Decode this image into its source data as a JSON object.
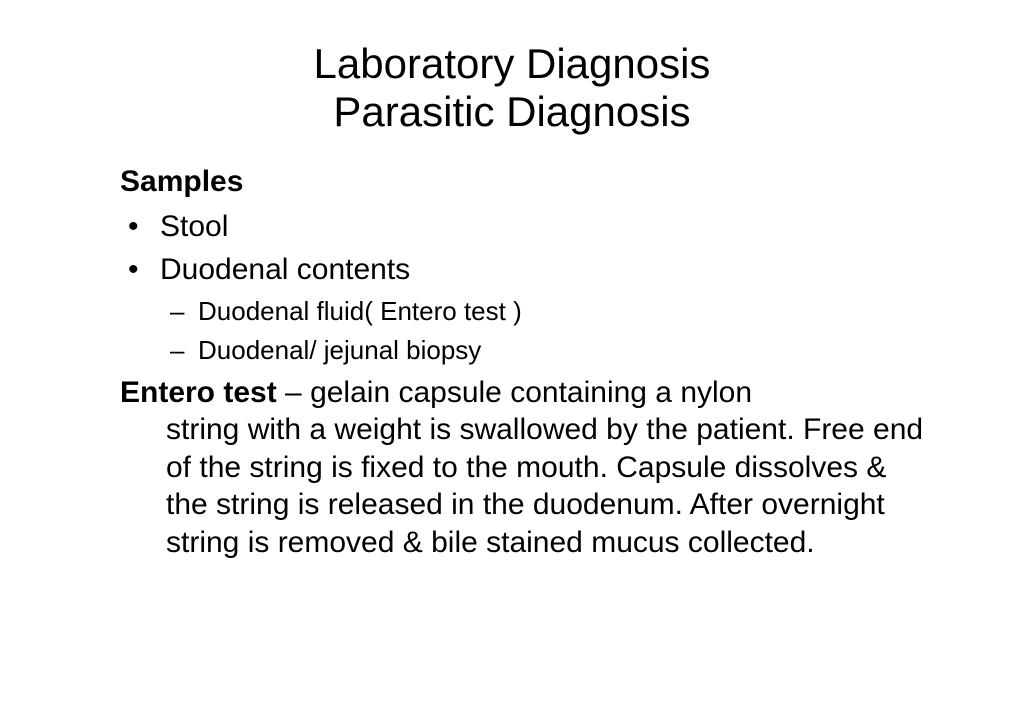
{
  "title": {
    "line1": "Laboratory Diagnosis",
    "line2": "Parasitic Diagnosis"
  },
  "section_heading": "Samples",
  "bullets": [
    {
      "text": "Stool"
    },
    {
      "text": "Duodenal contents",
      "sub": [
        "Duodenal fluid( Entero test )",
        "Duodenal/ jejunal biopsy"
      ]
    }
  ],
  "entero": {
    "label": "Entero test",
    "sep": " – ",
    "first_line_tail": "gelain capsule containing a nylon",
    "rest": "string with a weight is swallowed by the patient. Free end of the string is fixed to the mouth. Capsule dissolves & the string is released in the duodenum. After overnight string is removed & bile stained mucus collected."
  },
  "glyphs": {
    "bullet": "•",
    "dash": "–"
  }
}
